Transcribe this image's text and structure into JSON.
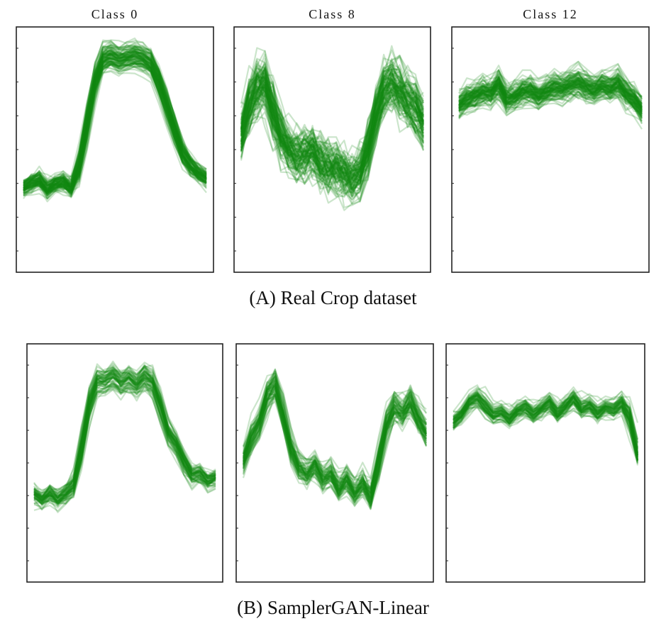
{
  "figure": {
    "caption_a": {
      "letter": "A",
      "text": "Real Crop dataset"
    },
    "caption_b": {
      "letter": "B",
      "text": "SamplerGAN-Linear"
    },
    "colors": {
      "series": "#138a13",
      "frame": "#222222"
    }
  },
  "chart_data": [
    {
      "type": "line",
      "title": "Class 0",
      "panel": "A",
      "x": [
        0,
        1,
        2,
        3,
        4,
        5,
        6,
        7,
        8,
        9,
        10,
        11,
        12,
        13,
        14,
        15,
        16,
        17,
        18,
        19,
        20,
        21,
        22,
        23
      ],
      "ylim": [
        0,
        1
      ],
      "base_profile": [
        0.34,
        0.36,
        0.38,
        0.33,
        0.36,
        0.37,
        0.33,
        0.42,
        0.6,
        0.78,
        0.87,
        0.88,
        0.86,
        0.87,
        0.88,
        0.87,
        0.85,
        0.78,
        0.68,
        0.58,
        0.48,
        0.43,
        0.4,
        0.38
      ],
      "n_series": 110,
      "spread": 0.05,
      "style": "smooth"
    },
    {
      "type": "line",
      "title": "Class 8",
      "panel": "A",
      "x": [
        0,
        1,
        2,
        3,
        4,
        5,
        6,
        7,
        8,
        9,
        10,
        11,
        12,
        13,
        14,
        15,
        16,
        17,
        18,
        19,
        20,
        21,
        22,
        23
      ],
      "ylim": [
        0,
        1
      ],
      "base_profile": [
        0.55,
        0.68,
        0.75,
        0.78,
        0.65,
        0.55,
        0.5,
        0.48,
        0.47,
        0.5,
        0.45,
        0.42,
        0.44,
        0.4,
        0.38,
        0.4,
        0.5,
        0.65,
        0.75,
        0.78,
        0.74,
        0.7,
        0.67,
        0.6
      ],
      "n_series": 110,
      "spread": 0.1,
      "style": "noisy"
    },
    {
      "type": "line",
      "title": "Class 12",
      "panel": "A",
      "x": [
        0,
        1,
        2,
        3,
        4,
        5,
        6,
        7,
        8,
        9,
        10,
        11,
        12,
        13,
        14,
        15,
        16,
        17,
        18,
        19,
        20,
        21,
        22,
        23
      ],
      "ylim": [
        0,
        1
      ],
      "base_profile": [
        0.68,
        0.71,
        0.72,
        0.74,
        0.73,
        0.78,
        0.7,
        0.72,
        0.74,
        0.75,
        0.72,
        0.74,
        0.76,
        0.75,
        0.77,
        0.78,
        0.76,
        0.74,
        0.77,
        0.75,
        0.78,
        0.73,
        0.71,
        0.66
      ],
      "n_series": 110,
      "spread": 0.04,
      "style": "noisy"
    },
    {
      "type": "line",
      "title": "",
      "panel": "B",
      "x": [
        0,
        1,
        2,
        3,
        4,
        5,
        6,
        7,
        8,
        9,
        10,
        11,
        12,
        13,
        14,
        15,
        16,
        17,
        18,
        19,
        20,
        21,
        22,
        23
      ],
      "ylim": [
        0,
        1
      ],
      "base_profile": [
        0.37,
        0.34,
        0.38,
        0.34,
        0.37,
        0.4,
        0.56,
        0.76,
        0.85,
        0.84,
        0.87,
        0.83,
        0.86,
        0.82,
        0.87,
        0.84,
        0.74,
        0.62,
        0.58,
        0.5,
        0.44,
        0.46,
        0.42,
        0.44
      ],
      "n_series": 70,
      "spread": 0.04,
      "style": "zigzag"
    },
    {
      "type": "line",
      "title": "",
      "panel": "B",
      "x": [
        0,
        1,
        2,
        3,
        4,
        5,
        6,
        7,
        8,
        9,
        10,
        11,
        12,
        13,
        14,
        15,
        16,
        17,
        18,
        19,
        20,
        21,
        22,
        23
      ],
      "ylim": [
        0,
        1
      ],
      "base_profile": [
        0.5,
        0.6,
        0.66,
        0.78,
        0.84,
        0.7,
        0.55,
        0.48,
        0.45,
        0.5,
        0.42,
        0.46,
        0.38,
        0.44,
        0.36,
        0.42,
        0.34,
        0.5,
        0.66,
        0.74,
        0.7,
        0.76,
        0.68,
        0.62
      ],
      "n_series": 70,
      "spread": 0.07,
      "style": "zigzag"
    },
    {
      "type": "line",
      "title": "",
      "panel": "B",
      "x": [
        0,
        1,
        2,
        3,
        4,
        5,
        6,
        7,
        8,
        9,
        10,
        11,
        12,
        13,
        14,
        15,
        16,
        17,
        18,
        19,
        20,
        21,
        22,
        23
      ],
      "ylim": [
        0,
        1
      ],
      "base_profile": [
        0.67,
        0.7,
        0.76,
        0.78,
        0.74,
        0.7,
        0.72,
        0.68,
        0.72,
        0.74,
        0.7,
        0.73,
        0.76,
        0.7,
        0.74,
        0.78,
        0.72,
        0.75,
        0.7,
        0.74,
        0.72,
        0.76,
        0.7,
        0.52
      ],
      "n_series": 70,
      "spread": 0.03,
      "style": "zigzag"
    }
  ]
}
